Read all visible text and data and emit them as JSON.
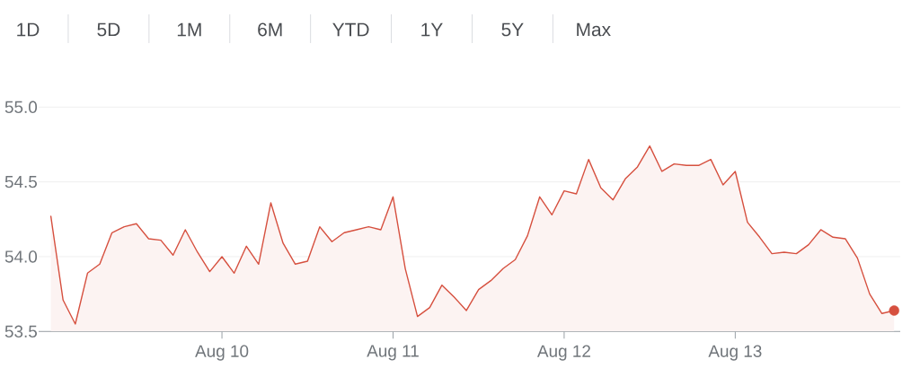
{
  "chart_data": {
    "type": "area",
    "annotations": [
      "1D",
      "5D",
      "1M",
      "6M",
      "YTD",
      "1Y",
      "5Y",
      "Max"
    ],
    "categories": [
      null,
      null,
      null,
      null,
      null,
      null,
      null,
      null,
      null,
      null,
      null,
      null,
      null,
      null,
      "Aug 10",
      null,
      null,
      null,
      null,
      null,
      null,
      null,
      null,
      null,
      null,
      null,
      null,
      null,
      "Aug 11",
      null,
      null,
      null,
      null,
      null,
      null,
      null,
      null,
      null,
      null,
      null,
      null,
      null,
      "Aug 12",
      null,
      null,
      null,
      null,
      null,
      null,
      null,
      null,
      null,
      null,
      null,
      null,
      null,
      "Aug 13",
      null,
      null,
      null,
      null,
      null,
      null,
      null,
      null,
      null,
      null,
      null,
      null,
      null
    ],
    "series": [
      {
        "color": "#d6503f",
        "values": [
          54.27,
          53.71,
          53.55,
          53.89,
          53.95,
          54.16,
          54.2,
          54.22,
          54.12,
          54.11,
          54.01,
          54.18,
          54.03,
          53.9,
          54.0,
          53.89,
          54.07,
          53.95,
          54.36,
          54.09,
          53.95,
          53.97,
          54.2,
          54.1,
          54.16,
          54.18,
          54.2,
          54.18,
          54.4,
          53.92,
          53.6,
          53.66,
          53.81,
          53.73,
          53.64,
          53.78,
          53.84,
          53.92,
          53.98,
          54.14,
          54.4,
          54.28,
          54.44,
          54.42,
          54.65,
          54.46,
          54.38,
          54.52,
          54.6,
          54.74,
          54.57,
          54.62,
          54.61,
          54.61,
          54.65,
          54.48,
          54.57,
          54.23,
          54.13,
          54.02,
          54.03,
          54.02,
          54.08,
          54.18,
          54.13,
          54.12,
          53.99,
          53.75,
          53.62,
          53.64
        ]
      },
      {
        "type": "scatter",
        "color": "#d6503f",
        "marker": "circle",
        "values": [
          null,
          null,
          null,
          null,
          null,
          null,
          null,
          null,
          null,
          null,
          null,
          null,
          null,
          null,
          null,
          null,
          null,
          null,
          null,
          null,
          null,
          null,
          null,
          null,
          null,
          null,
          null,
          null,
          null,
          null,
          null,
          null,
          null,
          null,
          null,
          null,
          null,
          null,
          null,
          null,
          null,
          null,
          null,
          null,
          null,
          null,
          null,
          null,
          null,
          null,
          null,
          null,
          null,
          null,
          null,
          null,
          null,
          null,
          null,
          null,
          null,
          null,
          null,
          null,
          null,
          null,
          null,
          null,
          null,
          53.64
        ]
      }
    ],
    "ylim": [
      53.5,
      55
    ],
    "yticks": [
      53.5,
      {
        "value": 54,
        "label": "54.0"
      },
      54.5,
      {
        "value": 55,
        "label": "55.0"
      }
    ],
    "grid": "y"
  }
}
